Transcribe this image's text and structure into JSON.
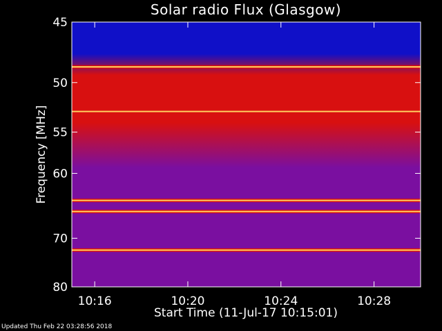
{
  "chart_data": {
    "type": "heatmap",
    "title": "Solar radio Flux (Glasgow)",
    "xlabel": "Start Time (11-Jul-17 10:15:01)",
    "ylabel": "Frequency [MHz]",
    "x_range": [
      "10:15:01",
      "10:30:00"
    ],
    "x_ticks": [
      "10:16",
      "10:20",
      "10:24",
      "10:28"
    ],
    "y_range": [
      45,
      80
    ],
    "y_ticks": [
      45,
      50,
      55,
      60,
      70,
      80
    ],
    "y_scale": "reciprocal",
    "bright_bands_mhz": [
      48.6,
      52.8,
      63.8,
      65.5,
      72.2
    ],
    "colors": {
      "low": "#1010c8",
      "mid": "#7a0fa0",
      "high": "#d81010",
      "peak": "#ffd060",
      "background": "#000000"
    }
  },
  "footer_text": "Updated Thu Feb 22 03:28:56 2018"
}
